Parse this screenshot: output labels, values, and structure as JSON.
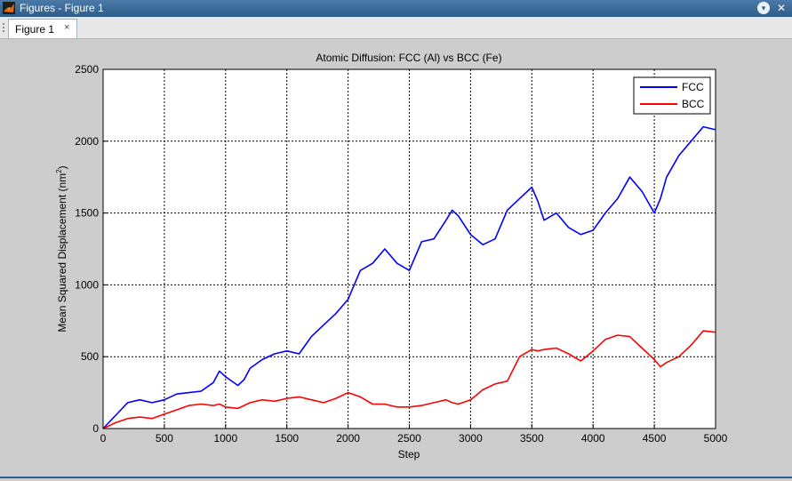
{
  "window": {
    "title": "Figures - Figure 1",
    "tab_label": "Figure 1",
    "tab_close": "×"
  },
  "chart_data": {
    "type": "line",
    "title": "Atomic Diffusion: FCC (Al) vs BCC (Fe)",
    "xlabel": "Step",
    "ylabel": "Mean Squared Displacement (nm²)",
    "ylabel_base": "Mean Squared Displacement (nm",
    "ylabel_sup": "2",
    "ylabel_close": ")",
    "xlim": [
      0,
      5000
    ],
    "ylim": [
      0,
      2500
    ],
    "xticks": [
      0,
      500,
      1000,
      1500,
      2000,
      2500,
      3000,
      3500,
      4000,
      4500,
      5000
    ],
    "yticks": [
      0,
      500,
      1000,
      1500,
      2000,
      2500
    ],
    "grid": true,
    "legend_position": "top-right",
    "x": [
      0,
      100,
      200,
      300,
      400,
      500,
      600,
      700,
      800,
      900,
      950,
      1000,
      1100,
      1150,
      1200,
      1300,
      1400,
      1500,
      1600,
      1700,
      1800,
      1900,
      2000,
      2100,
      2200,
      2300,
      2400,
      2500,
      2600,
      2700,
      2800,
      2850,
      2900,
      3000,
      3100,
      3200,
      3300,
      3400,
      3500,
      3550,
      3600,
      3700,
      3800,
      3900,
      4000,
      4100,
      4200,
      4300,
      4400,
      4500,
      4550,
      4600,
      4700,
      4800,
      4900,
      5000
    ],
    "series": [
      {
        "name": "FCC",
        "color": "#0000ff",
        "values": [
          0,
          90,
          180,
          200,
          180,
          200,
          240,
          250,
          260,
          320,
          400,
          360,
          300,
          340,
          420,
          480,
          520,
          540,
          520,
          640,
          720,
          800,
          900,
          1100,
          1150,
          1250,
          1150,
          1100,
          1300,
          1320,
          1450,
          1520,
          1480,
          1350,
          1280,
          1320,
          1520,
          1600,
          1680,
          1580,
          1450,
          1500,
          1400,
          1350,
          1380,
          1500,
          1600,
          1750,
          1650,
          1500,
          1600,
          1750,
          1900,
          2000,
          2100,
          2080
        ]
      },
      {
        "name": "BCC",
        "color": "#ff0000",
        "values": [
          0,
          40,
          70,
          80,
          70,
          100,
          130,
          160,
          170,
          160,
          170,
          150,
          140,
          160,
          180,
          200,
          190,
          210,
          220,
          200,
          180,
          210,
          250,
          220,
          170,
          170,
          150,
          150,
          160,
          180,
          200,
          180,
          170,
          200,
          270,
          310,
          330,
          500,
          550,
          540,
          550,
          560,
          520,
          470,
          540,
          620,
          650,
          640,
          560,
          480,
          430,
          460,
          500,
          580,
          680,
          670
        ]
      }
    ]
  }
}
